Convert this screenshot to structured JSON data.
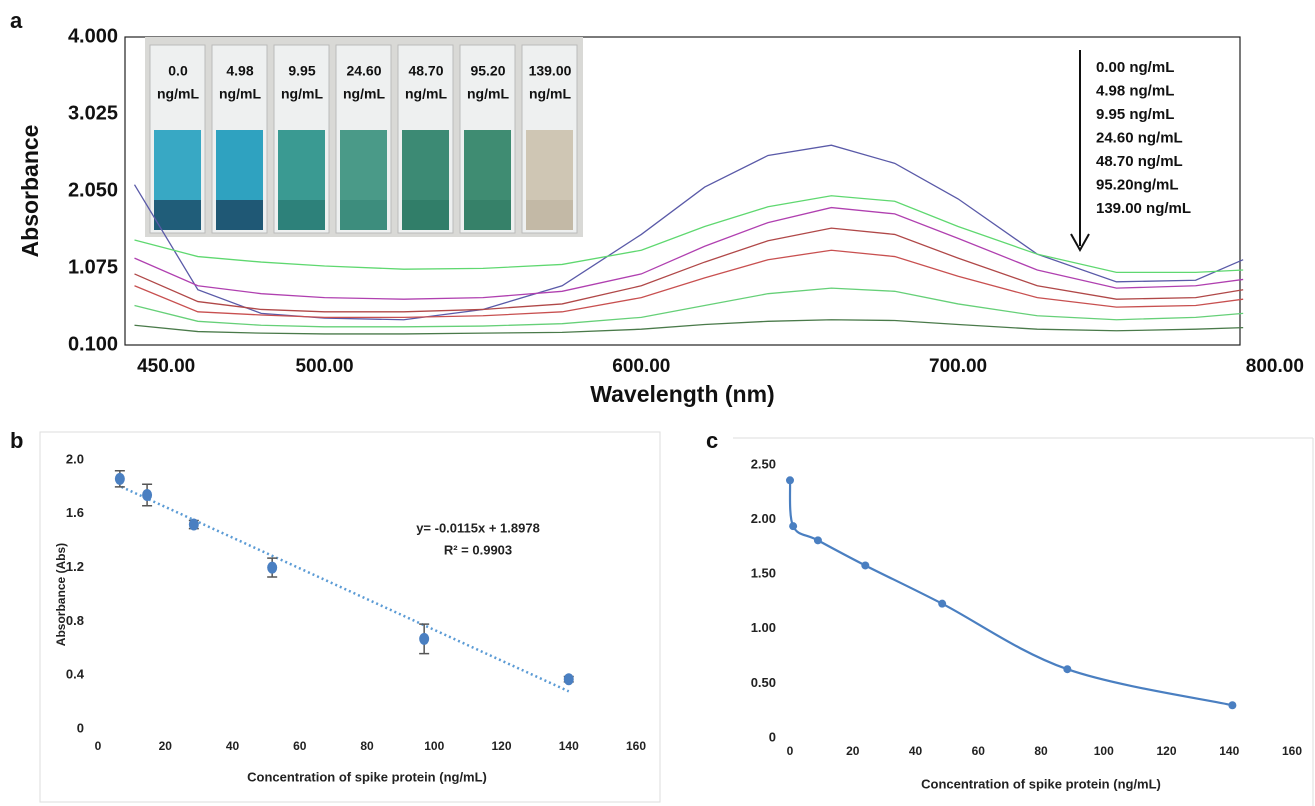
{
  "chart_data": [
    {
      "type": "line",
      "panel": "a",
      "x_label": "Wavelength (nm)",
      "y_label": "Absorbance",
      "x": [
        440,
        460,
        480,
        500,
        525,
        550,
        575,
        600,
        620,
        640,
        660,
        680,
        700,
        725,
        750,
        775,
        790
      ],
      "series": [
        {
          "name": "0.00 ng/mL",
          "color": "#5a5aa8",
          "values": [
            2.13,
            0.8,
            0.5,
            0.44,
            0.42,
            0.55,
            0.85,
            1.5,
            2.1,
            2.5,
            2.63,
            2.4,
            1.95,
            1.25,
            0.9,
            0.92,
            1.18
          ]
        },
        {
          "name": "4.98 ng/mL",
          "color": "#5fd870",
          "values": [
            1.43,
            1.22,
            1.15,
            1.1,
            1.06,
            1.07,
            1.12,
            1.3,
            1.6,
            1.85,
            1.99,
            1.92,
            1.6,
            1.25,
            1.02,
            1.02,
            1.05
          ]
        },
        {
          "name": "9.95 ng/mL",
          "color": "#b040b0",
          "values": [
            1.2,
            0.85,
            0.75,
            0.7,
            0.68,
            0.7,
            0.78,
            1.0,
            1.35,
            1.65,
            1.84,
            1.76,
            1.45,
            1.05,
            0.82,
            0.85,
            0.93
          ]
        },
        {
          "name": "24.60 ng/mL",
          "color": "#b04848",
          "values": [
            1.0,
            0.65,
            0.55,
            0.52,
            0.52,
            0.55,
            0.62,
            0.85,
            1.15,
            1.42,
            1.58,
            1.5,
            1.2,
            0.85,
            0.68,
            0.7,
            0.8
          ]
        },
        {
          "name": "48.70 ng/mL",
          "color": "#c85050",
          "values": [
            0.85,
            0.52,
            0.48,
            0.45,
            0.45,
            0.47,
            0.52,
            0.7,
            0.95,
            1.18,
            1.3,
            1.22,
            0.97,
            0.7,
            0.58,
            0.6,
            0.68
          ]
        },
        {
          "name": "95.20ng/mL",
          "color": "#66d078",
          "values": [
            0.6,
            0.4,
            0.35,
            0.33,
            0.33,
            0.34,
            0.37,
            0.45,
            0.6,
            0.75,
            0.82,
            0.78,
            0.62,
            0.47,
            0.42,
            0.45,
            0.5
          ]
        },
        {
          "name": "139.00 ng/mL",
          "color": "#4a7a4a",
          "values": [
            0.35,
            0.27,
            0.25,
            0.24,
            0.24,
            0.25,
            0.26,
            0.3,
            0.36,
            0.4,
            0.42,
            0.41,
            0.36,
            0.3,
            0.28,
            0.3,
            0.32
          ]
        }
      ],
      "xlim": [
        437,
        789
      ],
      "xticks": [
        {
          "value": 450,
          "label": "450.00"
        },
        {
          "value": 500,
          "label": "500.00"
        },
        {
          "value": 600,
          "label": "600.00"
        },
        {
          "value": 700,
          "label": "700.00"
        },
        {
          "value": 800,
          "label": "800.00"
        }
      ],
      "ylim": [
        0.1,
        4
      ],
      "yticks": [
        {
          "value": 0.1,
          "label": "0.100"
        },
        {
          "value": 1.075,
          "label": "1.075"
        },
        {
          "value": 2.05,
          "label": "2.050"
        },
        {
          "value": 3.025,
          "label": "3.025"
        },
        {
          "value": 4,
          "label": "4.000"
        }
      ],
      "inset": {
        "labels": [
          "0.0",
          "4.98",
          "9.95",
          "24.60",
          "48.70",
          "95.20",
          "139.00"
        ],
        "unit": "ng/mL"
      }
    },
    {
      "type": "scatter",
      "panel": "b",
      "x_label": "Concentration of spike protein (ng/mL)",
      "y_label": "Absorbance (Abs)",
      "x": [
        6.5,
        14.6,
        28.5,
        51.8,
        97,
        140
      ],
      "values": [
        1.86,
        1.74,
        1.52,
        1.2,
        0.67,
        0.37
      ],
      "errors": [
        0.06,
        0.08,
        0.03,
        0.07,
        0.11,
        0.02
      ],
      "color": "#4a7fc1",
      "trendline": {
        "x": [
          7,
          140
        ],
        "y": [
          1.8,
          0.28
        ],
        "color": "#5b9bd5"
      },
      "annotations": [
        "y= -0.0115x + 1.8978",
        "R² = 0.9903"
      ],
      "xlim": [
        0,
        160
      ],
      "xticks": [
        0,
        20,
        40,
        60,
        80,
        100,
        120,
        140,
        160
      ],
      "ylim": [
        0,
        2
      ],
      "yticks": [
        0,
        0.4,
        0.8,
        1.2,
        1.6,
        {
          "value": 2,
          "label": "2.0"
        }
      ]
    },
    {
      "type": "line",
      "panel": "c",
      "x_label": "Concentration of spike protein (ng/mL)",
      "markers": true,
      "smooth": true,
      "x": [
        0,
        1,
        8.9,
        24,
        48.5,
        88.4,
        141
      ],
      "series": [
        {
          "color": "#4a7fc1",
          "values": [
            2.36,
            1.94,
            1.81,
            1.58,
            1.23,
            0.63,
            0.3
          ]
        }
      ],
      "xlim": [
        0,
        160
      ],
      "xticks": [
        0,
        20,
        40,
        60,
        80,
        100,
        120,
        140,
        160
      ],
      "ylim": [
        0,
        2.5
      ],
      "yticks": [
        0,
        {
          "value": 0.5,
          "label": "0.50"
        },
        {
          "value": 1,
          "label": "1.00"
        },
        {
          "value": 1.5,
          "label": "1.50"
        },
        {
          "value": 2,
          "label": "2.00"
        },
        {
          "value": 2.5,
          "label": "2.50"
        }
      ]
    }
  ]
}
